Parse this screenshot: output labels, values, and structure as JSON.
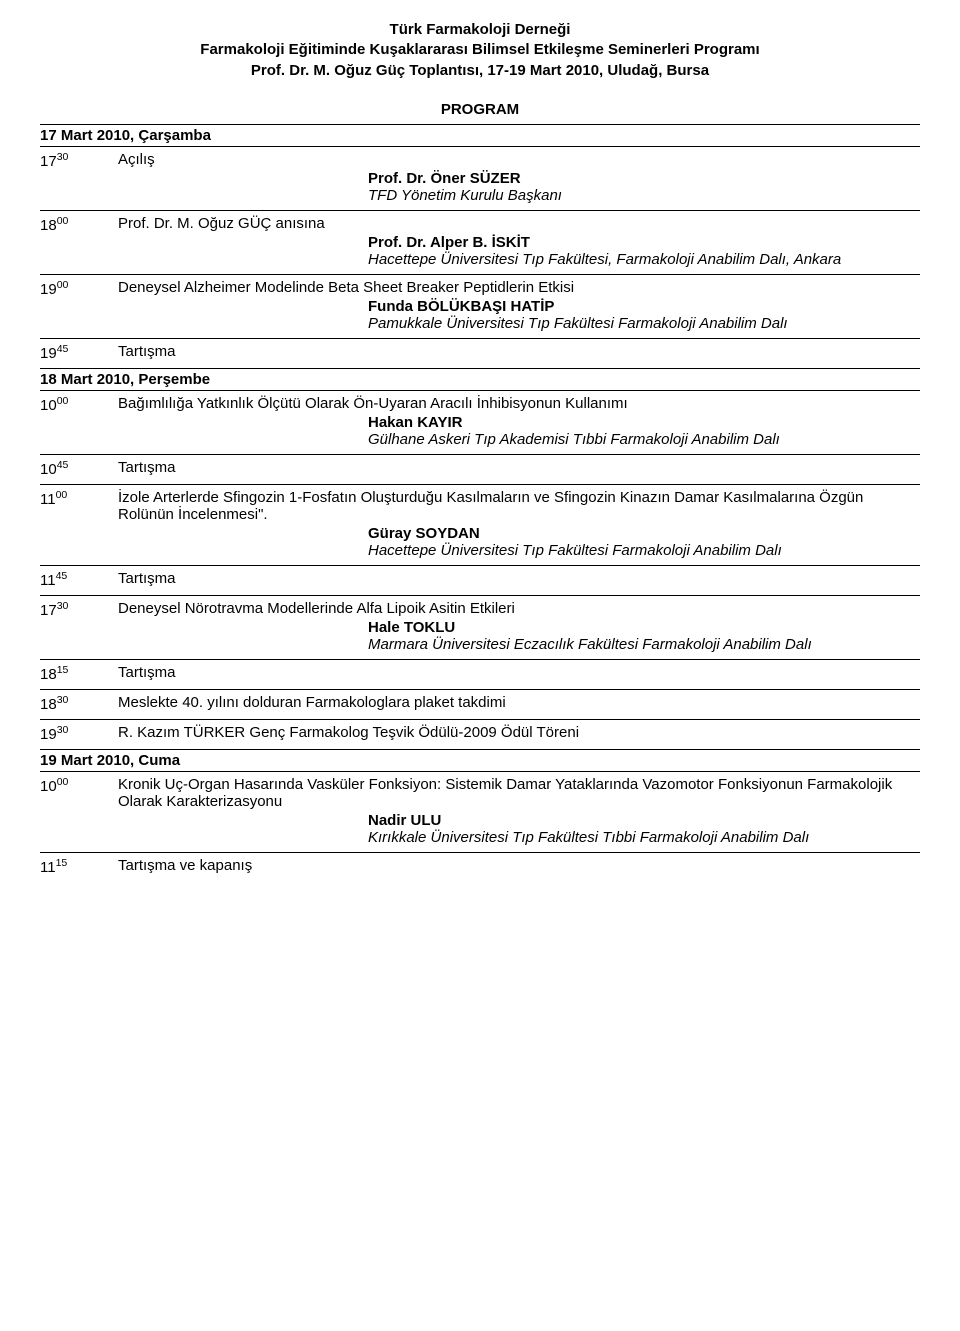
{
  "header": {
    "line1": "Türk Farmakoloji Derneği",
    "line2": "Farmakoloji Eğitiminde Kuşaklararası Bilimsel Etkileşme Seminerleri Programı",
    "line3": "Prof. Dr. M. Oğuz Güç Toplantısı, 17-19 Mart 2010, Uludağ, Bursa"
  },
  "program_label": "PROGRAM",
  "days": [
    {
      "title": "17 Mart 2010, Çarşamba",
      "rows": [
        {
          "time_h": "17",
          "time_m": "30",
          "topic": "Açılış",
          "speaker": "Prof. Dr. Öner SÜZER",
          "affiliation": "TFD Yönetim Kurulu Başkanı",
          "border": true
        },
        {
          "time_h": "18",
          "time_m": "00",
          "topic": "Prof. Dr. M. Oğuz GÜÇ anısına",
          "speaker": "Prof. Dr. Alper B. İSKİT",
          "affiliation": "Hacettepe Üniversitesi Tıp Fakültesi, Farmakoloji Anabilim Dalı, Ankara",
          "border": true
        },
        {
          "time_h": "19",
          "time_m": "00",
          "topic": "Deneysel Alzheimer Modelinde Beta Sheet Breaker Peptidlerin Etkisi",
          "speaker": "Funda BÖLÜKBAŞI HATİP",
          "affiliation": "Pamukkale Üniversitesi Tıp Fakültesi Farmakoloji Anabilim Dalı",
          "border": true
        },
        {
          "time_h": "19",
          "time_m": "45",
          "topic": "Tartışma",
          "border": false
        }
      ]
    },
    {
      "title": "18 Mart 2010, Perşembe",
      "rows": [
        {
          "time_h": "10",
          "time_m": "00",
          "topic": "Bağımlılığa Yatkınlık Ölçütü Olarak Ön-Uyaran Aracılı İnhibisyonun Kullanımı",
          "speaker": "Hakan KAYIR",
          "affiliation": "Gülhane Askeri Tıp Akademisi Tıbbi Farmakoloji Anabilim Dalı",
          "border": true
        },
        {
          "time_h": "10",
          "time_m": "45",
          "topic": "Tartışma",
          "border": true
        },
        {
          "time_h": "11",
          "time_m": "00",
          "topic": "İzole Arterlerde Sfingozin 1-Fosfatın Oluşturduğu Kasılmaların ve Sfingozin Kinazın Damar Kasılmalarına Özgün Rolünün İncelenmesi\".",
          "speaker": "Güray SOYDAN",
          "affiliation": "Hacettepe Üniversitesi Tıp Fakültesi Farmakoloji Anabilim Dalı",
          "border": true
        },
        {
          "time_h": "11",
          "time_m": "45",
          "topic": "Tartışma",
          "border": true
        },
        {
          "time_h": "17",
          "time_m": "30",
          "topic": "Deneysel Nörotravma Modellerinde Alfa Lipoik Asitin Etkileri",
          "speaker": "Hale TOKLU",
          "affiliation": "Marmara Üniversitesi Eczacılık Fakültesi Farmakoloji Anabilim Dalı",
          "border": true
        },
        {
          "time_h": "18",
          "time_m": "15",
          "topic": "Tartışma",
          "border": true
        },
        {
          "time_h": "18",
          "time_m": "30",
          "topic": "Meslekte 40. yılını dolduran Farmakologlara plaket takdimi",
          "border": true
        },
        {
          "time_h": "19",
          "time_m": "30",
          "topic": "R. Kazım TÜRKER Genç Farmakolog Teşvik Ödülü-2009 Ödül Töreni",
          "border": false
        }
      ]
    },
    {
      "title": "19 Mart 2010, Cuma",
      "rows": [
        {
          "time_h": "10",
          "time_m": "00",
          "topic": "Kronik Uç-Organ Hasarında Vasküler Fonksiyon: Sistemik Damar Yataklarında Vazomotor Fonksiyonun Farmakolojik Olarak Karakterizasyonu",
          "speaker": "Nadir ULU",
          "affiliation": "Kırıkkale Üniversitesi Tıp Fakültesi Tıbbi Farmakoloji Anabilim Dalı",
          "border": true
        },
        {
          "time_h": "11",
          "time_m": "15",
          "topic": "Tartışma ve kapanış",
          "border": false
        }
      ]
    }
  ]
}
